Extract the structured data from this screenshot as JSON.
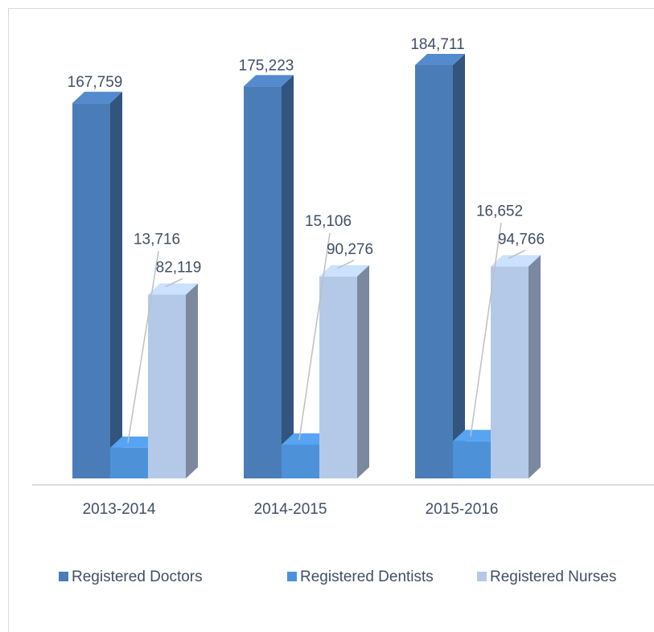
{
  "chart_data": {
    "type": "bar3d",
    "categories": [
      "2013-2014",
      "2014-2015",
      "2015-2016"
    ],
    "series": [
      {
        "name": "Registered Doctors",
        "color": "#4a7cb8",
        "values": [
          167759,
          175223,
          184711
        ],
        "value_labels": [
          "167,759",
          "175,223",
          "184,711"
        ]
      },
      {
        "name": "Registered Dentists",
        "color": "#4d92d8",
        "values": [
          13716,
          15106,
          16652
        ],
        "value_labels": [
          "13,716",
          "15,106",
          "16,652"
        ]
      },
      {
        "name": "Registered Nurses",
        "color": "#b4c9e8",
        "values": [
          82119,
          90276,
          94766
        ],
        "value_labels": [
          "82,119",
          "90,276",
          "94,766"
        ]
      }
    ],
    "legend": "bottom"
  }
}
